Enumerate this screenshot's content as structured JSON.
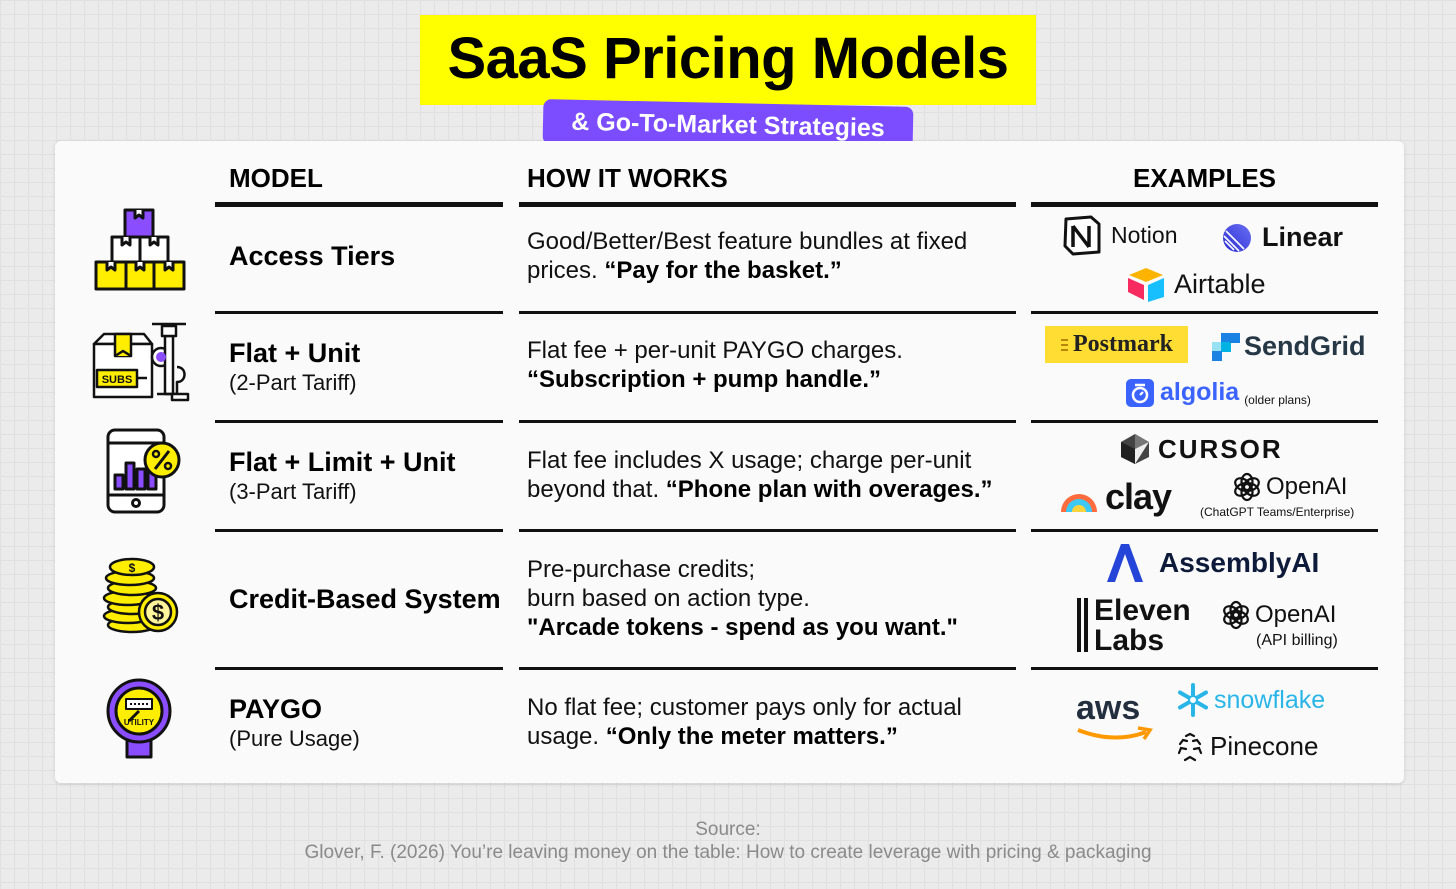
{
  "title": "SaaS Pricing Models",
  "subtitle": "& Go-To-Market Strategies",
  "headers": {
    "model": "MODEL",
    "how": "HOW IT WORKS",
    "examples": "EXAMPLES"
  },
  "rows": [
    {
      "icon": "stacked-boxes-icon",
      "model": "Access Tiers",
      "model_sub": "",
      "how_plain": "Good/Better/Best feature bundles at fixed prices. ",
      "how_bold": "“Pay for the basket.”",
      "examples": [
        "Notion",
        "Linear",
        "Airtable"
      ]
    },
    {
      "icon": "subscription-box-pump-icon",
      "icon_label": "SUBS",
      "model": "Flat + Unit",
      "model_sub": "(2-Part Tariff)",
      "how_plain": "Flat fee + per-unit PAYGO charges.",
      "how_bold": "“Subscription + pump handle.”",
      "examples": [
        "Postmark",
        "SendGrid",
        "algolia"
      ],
      "example_note": "(older plans)"
    },
    {
      "icon": "phone-chart-percent-icon",
      "model": "Flat + Limit + Unit",
      "model_sub": "(3-Part Tariff)",
      "how_plain": "Flat fee includes X usage; charge per-unit beyond that. ",
      "how_bold": "“Phone plan with overages.”",
      "examples": [
        "CURSOR",
        "clay",
        "OpenAI"
      ],
      "example_note": "(ChatGPT Teams/Enterprise)"
    },
    {
      "icon": "coin-stack-icon",
      "model": "Credit-Based System",
      "model_sub": "",
      "how_line1": "Pre-purchase credits;",
      "how_line2": "burn based on action type.",
      "how_bold": "\"Arcade tokens - spend as you want.\"",
      "examples": [
        "AssemblyAI",
        "Eleven",
        "Labs",
        "OpenAI"
      ],
      "example_note": "(API billing)"
    },
    {
      "icon": "utility-meter-icon",
      "icon_label": "UTILITY",
      "model": "PAYGO",
      "model_sub": "(Pure Usage)",
      "how_plain": "No flat fee; customer pays only for actual usage. ",
      "how_bold": "“Only the meter matters.”",
      "examples": [
        "aws",
        "snowflake",
        "Pinecone"
      ]
    }
  ],
  "source_label": "Source:",
  "source_text": "Glover, F. (2026) You’re leaving money on the table: How to create leverage with pricing & packaging",
  "colors": {
    "title_bg": "#ffff00",
    "subtitle_bg": "#7c4dff",
    "icon_purple": "#8a4dff",
    "icon_yellow": "#ffee00"
  }
}
